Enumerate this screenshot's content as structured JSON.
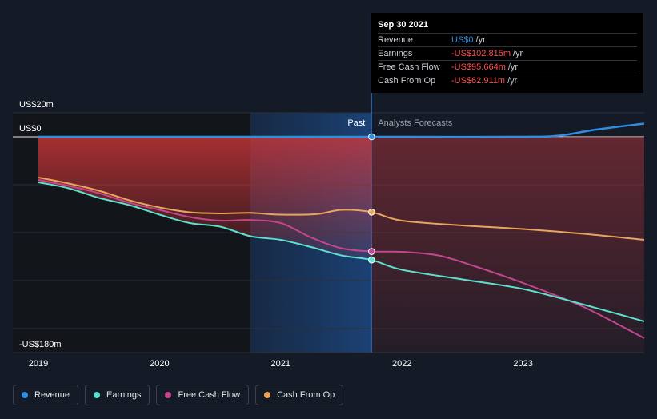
{
  "chart_data": {
    "type": "line",
    "y_unit": "US$ m",
    "ylim": [
      -180,
      20
    ],
    "y_tick_labels": [
      {
        "value": 20,
        "label": "US$20m"
      },
      {
        "value": 0,
        "label": "US$0"
      },
      {
        "value": -180,
        "label": "-US$180m"
      }
    ],
    "x_ticks": [
      {
        "value": 2019,
        "label": "2019"
      },
      {
        "value": 2020,
        "label": "2020"
      },
      {
        "value": 2021,
        "label": "2021"
      },
      {
        "value": 2022,
        "label": "2022"
      },
      {
        "value": 2023,
        "label": "2023"
      }
    ],
    "xlim": [
      2019,
      2024.0
    ],
    "shaded_from": 2020.75,
    "divider_x": 2021.75,
    "past_label": "Past",
    "forecast_label": "Analysts Forecasts",
    "series": [
      {
        "name": "Revenue",
        "color": "#2e8fe0",
        "points": [
          [
            2019,
            0
          ],
          [
            2020,
            0
          ],
          [
            2021,
            0
          ],
          [
            2021.75,
            0
          ],
          [
            2022,
            0
          ],
          [
            2023,
            0
          ],
          [
            2023.3,
            1
          ],
          [
            2023.6,
            6
          ],
          [
            2024.0,
            11
          ]
        ],
        "marker_at": [
          2021.75,
          0
        ]
      },
      {
        "name": "Earnings",
        "color": "#5ce1cf",
        "points": [
          [
            2019,
            -38
          ],
          [
            2019.25,
            -43
          ],
          [
            2019.5,
            -51
          ],
          [
            2019.75,
            -57
          ],
          [
            2020,
            -65
          ],
          [
            2020.25,
            -72
          ],
          [
            2020.5,
            -75
          ],
          [
            2020.75,
            -83
          ],
          [
            2021,
            -86
          ],
          [
            2021.25,
            -92
          ],
          [
            2021.5,
            -99
          ],
          [
            2021.75,
            -102.8
          ],
          [
            2022,
            -111
          ],
          [
            2022.5,
            -119
          ],
          [
            2023,
            -127
          ],
          [
            2023.5,
            -140
          ],
          [
            2024.0,
            -154
          ]
        ],
        "marker_at": [
          2021.75,
          -102.8
        ]
      },
      {
        "name": "Free Cash Flow",
        "color": "#c4468f",
        "points": [
          [
            2019,
            -36
          ],
          [
            2019.25,
            -41
          ],
          [
            2019.5,
            -47
          ],
          [
            2019.75,
            -55
          ],
          [
            2020,
            -61
          ],
          [
            2020.25,
            -67
          ],
          [
            2020.5,
            -70
          ],
          [
            2020.75,
            -69.5
          ],
          [
            2021,
            -72
          ],
          [
            2021.25,
            -84
          ],
          [
            2021.5,
            -93
          ],
          [
            2021.75,
            -95.7
          ],
          [
            2022,
            -96
          ],
          [
            2022.3,
            -99
          ],
          [
            2022.6,
            -108
          ],
          [
            2023,
            -122
          ],
          [
            2023.5,
            -142
          ],
          [
            2024.0,
            -168
          ]
        ],
        "marker_at": [
          2021.75,
          -95.7
        ]
      },
      {
        "name": "Cash From Op",
        "color": "#e9a55e",
        "points": [
          [
            2019,
            -34
          ],
          [
            2019.25,
            -39
          ],
          [
            2019.5,
            -45
          ],
          [
            2019.75,
            -53
          ],
          [
            2020,
            -59
          ],
          [
            2020.25,
            -63
          ],
          [
            2020.5,
            -64
          ],
          [
            2020.75,
            -63.5
          ],
          [
            2021,
            -65
          ],
          [
            2021.3,
            -64.5
          ],
          [
            2021.5,
            -61
          ],
          [
            2021.75,
            -62.9
          ],
          [
            2022,
            -70
          ],
          [
            2022.5,
            -74
          ],
          [
            2023,
            -77
          ],
          [
            2023.5,
            -81
          ],
          [
            2024.0,
            -86
          ]
        ],
        "marker_at": [
          2021.75,
          -62.9
        ]
      }
    ]
  },
  "tooltip": {
    "date": "Sep 30 2021",
    "rows": [
      {
        "label": "Revenue",
        "value": "US$0",
        "unit": "/yr",
        "color": "#2e8fe0"
      },
      {
        "label": "Earnings",
        "value": "-US$102.815m",
        "unit": "/yr",
        "color": "#ff4d4f"
      },
      {
        "label": "Free Cash Flow",
        "value": "-US$95.664m",
        "unit": "/yr",
        "color": "#ff4d4f"
      },
      {
        "label": "Cash From Op",
        "value": "-US$62.911m",
        "unit": "/yr",
        "color": "#ff4d4f"
      }
    ]
  },
  "legend": [
    {
      "label": "Revenue",
      "color": "#2e8fe0"
    },
    {
      "label": "Earnings",
      "color": "#5ce1cf"
    },
    {
      "label": "Free Cash Flow",
      "color": "#c4468f"
    },
    {
      "label": "Cash From Op",
      "color": "#e9a55e"
    }
  ]
}
